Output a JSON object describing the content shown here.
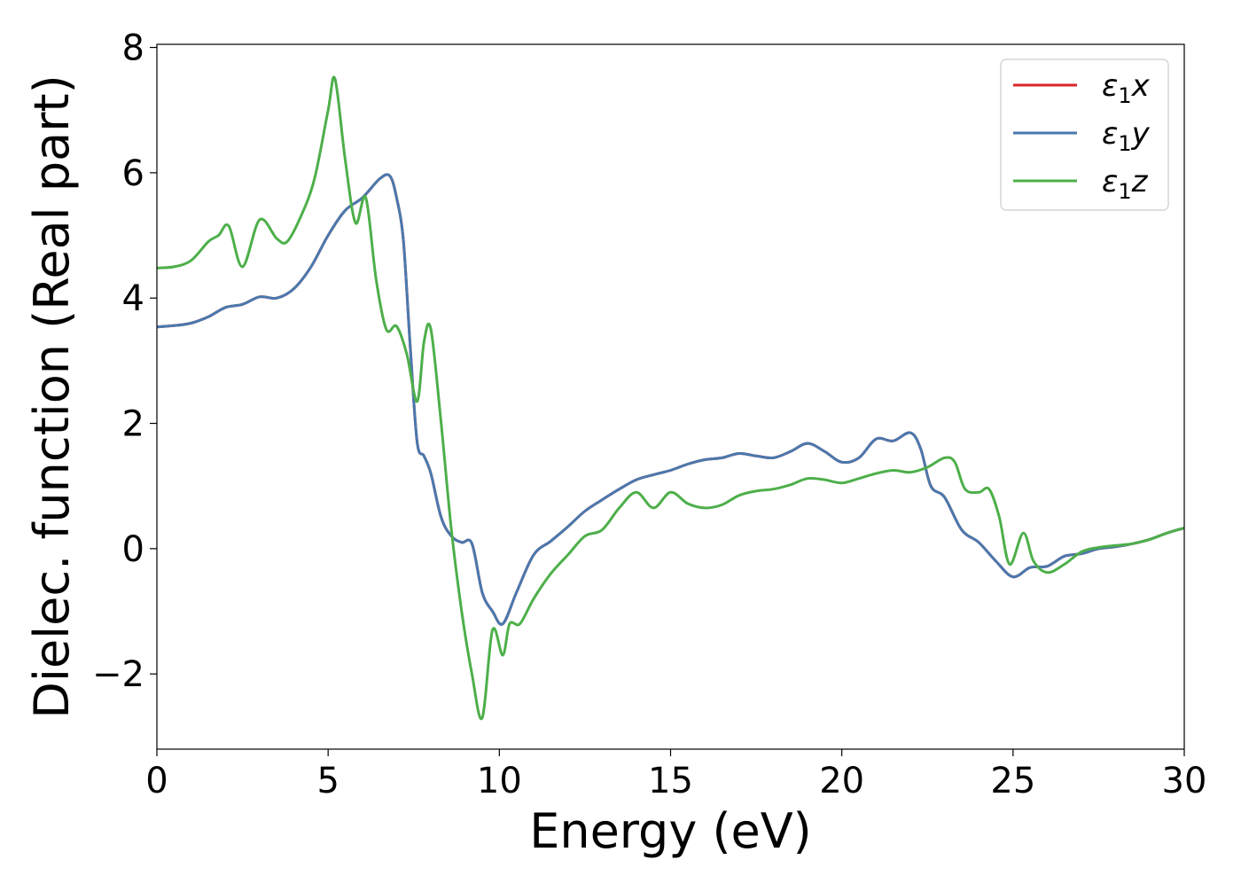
{
  "chart_data": {
    "type": "line",
    "title": "",
    "xlabel": "Energy (eV)",
    "ylabel": "Dielec. function (Real part)",
    "xlim": [
      0,
      30
    ],
    "ylim": [
      -3.2,
      8.05
    ],
    "xticks": [
      0,
      5,
      10,
      15,
      20,
      25,
      30
    ],
    "xtick_labels": [
      "0",
      "5",
      "10",
      "15",
      "20",
      "25",
      "30"
    ],
    "yticks": [
      -2,
      0,
      2,
      4,
      6,
      8
    ],
    "ytick_labels": [
      "−2",
      "0",
      "2",
      "4",
      "6",
      "8"
    ],
    "grid": false,
    "legend_position": "top-right",
    "series": [
      {
        "name": "ε1x",
        "legend_main": "ε",
        "legend_sub": "1",
        "legend_tail": "x",
        "color": "#d62728",
        "x": [
          0,
          0.5,
          1,
          1.5,
          2,
          2.5,
          3,
          3.5,
          4,
          4.5,
          5,
          5.5,
          6,
          6.5,
          6.8,
          7,
          7.2,
          7.4,
          7.6,
          7.8,
          8,
          8.3,
          8.6,
          8.9,
          9.2,
          9.5,
          9.8,
          10.1,
          10.5,
          11,
          11.5,
          12,
          12.5,
          13,
          13.5,
          14,
          14.5,
          15,
          15.5,
          16,
          16.5,
          17,
          17.5,
          18,
          18.5,
          19,
          19.5,
          20,
          20.5,
          21,
          21.5,
          22,
          22.3,
          22.6,
          23,
          23.5,
          24,
          24.5,
          25,
          25.5,
          26,
          26.5,
          27,
          27.5,
          28,
          28.5,
          29,
          29.5,
          30
        ],
        "y": [
          3.54,
          3.56,
          3.6,
          3.7,
          3.85,
          3.9,
          4.02,
          4.0,
          4.15,
          4.5,
          5.0,
          5.4,
          5.6,
          5.9,
          5.95,
          5.6,
          4.9,
          3.2,
          1.7,
          1.48,
          1.2,
          0.5,
          0.2,
          0.1,
          0.08,
          -0.7,
          -1.0,
          -1.2,
          -0.7,
          -0.1,
          0.12,
          0.35,
          0.6,
          0.78,
          0.95,
          1.1,
          1.18,
          1.25,
          1.35,
          1.42,
          1.45,
          1.52,
          1.48,
          1.45,
          1.55,
          1.68,
          1.55,
          1.38,
          1.45,
          1.75,
          1.72,
          1.85,
          1.6,
          1.0,
          0.82,
          0.3,
          0.1,
          -0.2,
          -0.45,
          -0.3,
          -0.28,
          -0.12,
          -0.08,
          0.0,
          0.03,
          0.08,
          0.15,
          0.25,
          0.33
        ]
      },
      {
        "name": "ε1y",
        "legend_main": "ε",
        "legend_sub": "1",
        "legend_tail": "y",
        "color": "#4a78ad",
        "x": [
          0,
          0.5,
          1,
          1.5,
          2,
          2.5,
          3,
          3.5,
          4,
          4.5,
          5,
          5.5,
          6,
          6.5,
          6.8,
          7,
          7.2,
          7.4,
          7.6,
          7.8,
          8,
          8.3,
          8.6,
          8.9,
          9.2,
          9.5,
          9.8,
          10.1,
          10.5,
          11,
          11.5,
          12,
          12.5,
          13,
          13.5,
          14,
          14.5,
          15,
          15.5,
          16,
          16.5,
          17,
          17.5,
          18,
          18.5,
          19,
          19.5,
          20,
          20.5,
          21,
          21.5,
          22,
          22.3,
          22.6,
          23,
          23.5,
          24,
          24.5,
          25,
          25.5,
          26,
          26.5,
          27,
          27.5,
          28,
          28.5,
          29,
          29.5,
          30
        ],
        "y": [
          3.54,
          3.56,
          3.6,
          3.7,
          3.85,
          3.9,
          4.02,
          4.0,
          4.15,
          4.5,
          5.0,
          5.4,
          5.6,
          5.9,
          5.95,
          5.6,
          4.9,
          3.2,
          1.7,
          1.48,
          1.2,
          0.5,
          0.2,
          0.1,
          0.08,
          -0.7,
          -1.0,
          -1.2,
          -0.7,
          -0.1,
          0.12,
          0.35,
          0.6,
          0.78,
          0.95,
          1.1,
          1.18,
          1.25,
          1.35,
          1.42,
          1.45,
          1.52,
          1.48,
          1.45,
          1.55,
          1.68,
          1.55,
          1.38,
          1.45,
          1.75,
          1.72,
          1.85,
          1.6,
          1.0,
          0.82,
          0.3,
          0.1,
          -0.2,
          -0.45,
          -0.3,
          -0.28,
          -0.12,
          -0.08,
          0.0,
          0.03,
          0.08,
          0.15,
          0.25,
          0.33
        ]
      },
      {
        "name": "ε1z",
        "legend_main": "ε",
        "legend_sub": "1",
        "legend_tail": "z",
        "color": "#4daf4a",
        "x": [
          0,
          0.5,
          1,
          1.5,
          1.8,
          2.1,
          2.5,
          3.0,
          3.5,
          3.8,
          4.2,
          4.6,
          5.0,
          5.2,
          5.5,
          5.8,
          6.1,
          6.4,
          6.7,
          7.0,
          7.3,
          7.6,
          7.8,
          8.0,
          8.3,
          8.6,
          8.9,
          9.2,
          9.5,
          9.8,
          10.1,
          10.3,
          10.6,
          11,
          11.5,
          12,
          12.5,
          13,
          13.5,
          14,
          14.5,
          15,
          15.5,
          16,
          16.5,
          17,
          17.5,
          18,
          18.5,
          19,
          19.5,
          20,
          20.5,
          21,
          21.5,
          22,
          22.5,
          23,
          23.3,
          23.6,
          24,
          24.3,
          24.6,
          24.9,
          25.3,
          25.6,
          26,
          26.5,
          27,
          27.5,
          28,
          28.5,
          29,
          29.5,
          30
        ],
        "y": [
          4.48,
          4.5,
          4.6,
          4.9,
          5.0,
          5.15,
          4.5,
          5.25,
          4.95,
          4.9,
          5.3,
          5.9,
          7.0,
          7.5,
          6.2,
          5.2,
          5.6,
          4.3,
          3.5,
          3.55,
          3.1,
          2.35,
          3.3,
          3.5,
          2.0,
          0.3,
          -1.0,
          -2.0,
          -2.7,
          -1.3,
          -1.7,
          -1.2,
          -1.2,
          -0.8,
          -0.4,
          -0.1,
          0.2,
          0.3,
          0.65,
          0.9,
          0.65,
          0.9,
          0.72,
          0.65,
          0.7,
          0.85,
          0.92,
          0.95,
          1.02,
          1.12,
          1.1,
          1.05,
          1.12,
          1.2,
          1.25,
          1.22,
          1.3,
          1.45,
          1.38,
          0.95,
          0.9,
          0.95,
          0.5,
          -0.25,
          0.25,
          -0.2,
          -0.38,
          -0.25,
          -0.05,
          0.02,
          0.05,
          0.08,
          0.15,
          0.25,
          0.33
        ]
      }
    ]
  }
}
